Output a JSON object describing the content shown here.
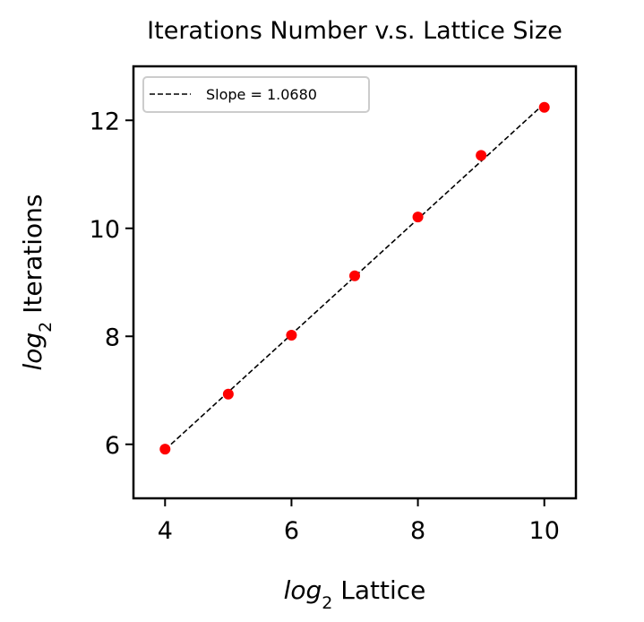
{
  "chart_data": {
    "type": "scatter",
    "title": "Iterations Number v.s. Lattice Size",
    "xlabel": {
      "math": "log",
      "sub": "2",
      "text": " Lattice"
    },
    "ylabel": {
      "math": "log",
      "sub": "2",
      "text": " Iterations"
    },
    "xlim": [
      3.5,
      10.5
    ],
    "ylim": [
      5.0,
      13.0
    ],
    "xticks": [
      4,
      6,
      8,
      10
    ],
    "yticks": [
      6,
      8,
      10,
      12
    ],
    "grid": false,
    "legend_position": "upper-left",
    "points": {
      "x": [
        4,
        5,
        6,
        7,
        8,
        9,
        10
      ],
      "y": [
        5.91,
        6.93,
        8.02,
        9.12,
        10.21,
        11.35,
        12.24
      ],
      "color": "#ff0000"
    },
    "fit_line": {
      "name": "Slope = 1.0680",
      "slope": 1.068,
      "x_range": [
        4,
        10
      ],
      "y_range": [
        5.9,
        12.31
      ],
      "style": "dashed",
      "color": "#000000"
    }
  }
}
